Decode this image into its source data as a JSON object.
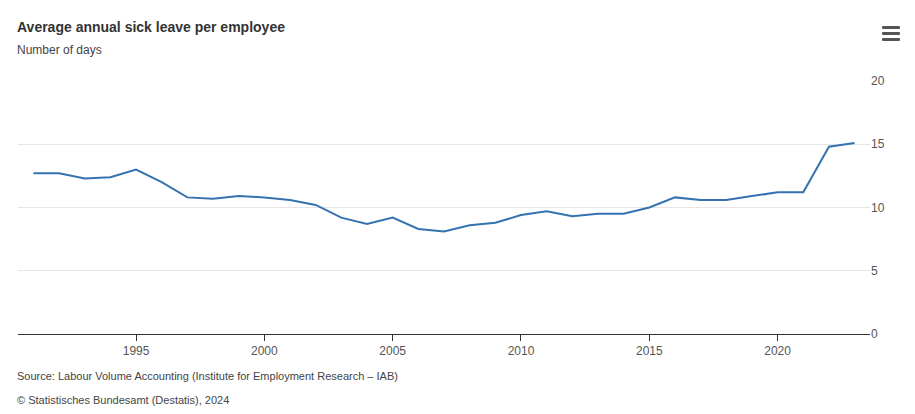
{
  "chart_data": {
    "type": "line",
    "title": "Average annual sick leave per employee",
    "subtitle": "Number of days",
    "source": "Source: Labour Volume Accounting (Institute for Employment Research – IAB)",
    "credit": "© Statistisches Bundesamt (Destatis), 2024",
    "x": [
      1991,
      1992,
      1993,
      1994,
      1995,
      1996,
      1997,
      1998,
      1999,
      2000,
      2001,
      2002,
      2003,
      2004,
      2005,
      2006,
      2007,
      2008,
      2009,
      2010,
      2011,
      2012,
      2013,
      2014,
      2015,
      2016,
      2017,
      2018,
      2019,
      2020,
      2021,
      2022,
      2023
    ],
    "values": [
      12.7,
      12.7,
      12.3,
      12.4,
      13.0,
      12.0,
      10.8,
      10.7,
      10.9,
      10.8,
      10.6,
      10.2,
      9.2,
      8.7,
      9.2,
      8.3,
      8.1,
      8.6,
      8.8,
      9.4,
      9.7,
      9.3,
      9.5,
      9.5,
      10.0,
      10.8,
      10.6,
      10.6,
      10.9,
      11.2,
      11.2,
      14.8,
      15.1
    ],
    "color": "#3572b0",
    "xlim": [
      1990.4,
      2023.6
    ],
    "xticks": [
      1995,
      2000,
      2005,
      2010,
      2015,
      2020
    ],
    "ylim": [
      0,
      20
    ],
    "yticks": [
      0,
      5,
      10,
      15,
      20
    ],
    "grid": true
  }
}
